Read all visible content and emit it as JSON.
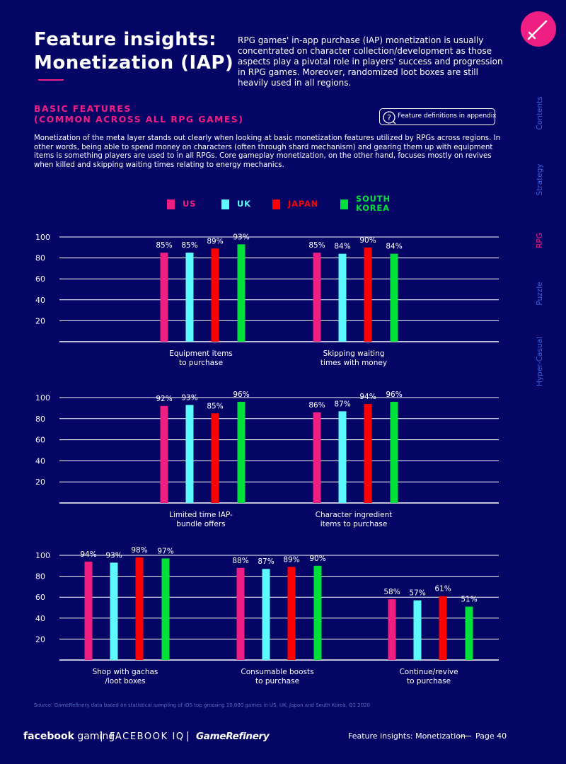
{
  "title_line1": "Feature insights:",
  "title_line2": "Monetization (IAP)",
  "intro": "RPG games' in-app purchase (IAP) monetization is usually concentrated on character collection/development as those aspects play a pivotal role in players' success and progression in RPG games. Moreover, randomized loot boxes are still heavily used in all regions.",
  "section_title_line1": "BASIC FEATURES",
  "section_title_line2": "(COMMON ACROSS ALL RPG GAMES)",
  "appendix_label": "Feature definitions in appendix",
  "description": "Monetization of the meta layer stands out clearly when looking at basic monetization features utilized by RPGs across regions. In other words, being able to spend money on characters (often through shard mechanism) and gearing them up with equipment items is something players are used to in all RPGs. Core gameplay monetization, on the other hand, focuses mostly on revives when killed and skipping waiting times relating to energy mechanics.",
  "side_nav": [
    {
      "label": "Contents",
      "active": false
    },
    {
      "label": "Strategy",
      "active": false
    },
    {
      "label": "RPG",
      "active": true
    },
    {
      "label": "Puzzle",
      "active": false
    },
    {
      "label": "Hyper-Casual",
      "active": false
    }
  ],
  "legend": [
    {
      "label": "US",
      "color": "#ee1e82"
    },
    {
      "label": "UK",
      "color": "#5cfaff"
    },
    {
      "label": "JAPAN",
      "color": "#ff0000"
    },
    {
      "label": "SOUTH KOREA",
      "color": "#00e03a"
    }
  ],
  "chart_data": {
    "type": "bar",
    "ylim": [
      0,
      100
    ],
    "yticks": [
      20,
      40,
      60,
      80,
      100
    ],
    "series_names": [
      "US",
      "UK",
      "JAPAN",
      "SOUTH KOREA"
    ],
    "colors": [
      "#ee1e82",
      "#5cfaff",
      "#ff0000",
      "#00e03a"
    ],
    "rows": [
      {
        "groups": [
          {
            "label": "Equipment items to purchase",
            "label_lines": [
              "Equipment items",
              "to purchase"
            ],
            "values": [
              85,
              85,
              89,
              93
            ]
          },
          {
            "label": "Skipping waiting times with money",
            "label_lines": [
              "Skipping waiting",
              "times with money"
            ],
            "values": [
              85,
              84,
              90,
              84
            ]
          }
        ]
      },
      {
        "groups": [
          {
            "label": "Limited time IAP-bundle offers",
            "label_lines": [
              "Limited time IAP-",
              "bundle offers"
            ],
            "values": [
              92,
              93,
              85,
              96
            ]
          },
          {
            "label": "Character ingredient items to purchase",
            "label_lines": [
              "Character ingredient",
              "items to purchase"
            ],
            "values": [
              86,
              87,
              94,
              96
            ]
          }
        ]
      },
      {
        "groups": [
          {
            "label": "Shop with gachas /loot boxes",
            "label_lines": [
              "Shop with gachas",
              "/loot boxes"
            ],
            "values": [
              94,
              93,
              98,
              97
            ]
          },
          {
            "label": "Consumable boosts to purchase",
            "label_lines": [
              "Consumable boosts",
              "to purchase"
            ],
            "values": [
              88,
              87,
              89,
              90
            ]
          },
          {
            "label": "Continue/revive to purchase",
            "label_lines": [
              "Continue/revive",
              "to purchase"
            ],
            "values": [
              58,
              57,
              61,
              51
            ]
          }
        ]
      }
    ]
  },
  "source": "Source: GameRefinery data based on statistical sampling of iOS top grossing 10,000 games in US, UK, Japan and South Korea, Q1 2020",
  "footer": {
    "facebook": "facebook",
    "gaming": "gaming",
    "sep": "|",
    "facebook_iq": "FACEBOOK IQ",
    "gamerefinery": "GameRefinery",
    "page_label": "Feature insights: Monetization",
    "page_number": "Page 40"
  }
}
